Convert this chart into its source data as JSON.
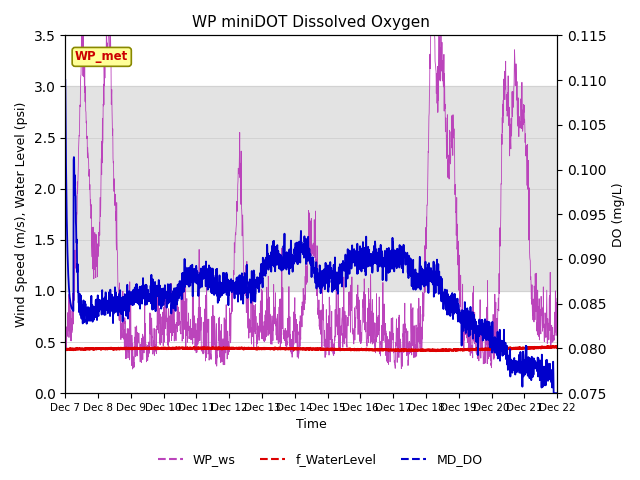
{
  "title": "WP miniDOT Dissolved Oxygen",
  "xlabel": "Time",
  "ylabel_left": "Wind Speed (m/s), Water Level (psi)",
  "ylabel_right": "DO (mg/L)",
  "ylim_left": [
    0.0,
    3.5
  ],
  "ylim_right": [
    0.075,
    0.115
  ],
  "yticks_left": [
    0.0,
    0.5,
    1.0,
    1.5,
    2.0,
    2.5,
    3.0,
    3.5
  ],
  "yticks_right": [
    0.075,
    0.08,
    0.085,
    0.09,
    0.095,
    0.1,
    0.105,
    0.11,
    0.115
  ],
  "x_tick_labels": [
    "Dec 7",
    "Dec 8",
    "Dec 9",
    "Dec 10",
    "Dec 11",
    "Dec 12",
    "Dec 13",
    "Dec 14",
    "Dec 15",
    "Dec 16",
    "Dec 17",
    "Dec 18",
    "Dec 19",
    "Dec 20",
    "Dec 21",
    "Dec 22"
  ],
  "wp_ws_color": "#BB44BB",
  "f_waterlevel_color": "#DD0000",
  "md_do_color": "#0000CC",
  "shaded_band_color": "#DCDCDC",
  "shaded_band_alpha": 0.8,
  "shaded_band_ylim": [
    1.0,
    3.0
  ],
  "annotation_box_text": "WP_met",
  "annotation_box_color": "#FFFF99",
  "annotation_box_edge_color": "#888800",
  "annotation_text_color": "#CC0000",
  "legend_labels": [
    "WP_ws",
    "f_WaterLevel",
    "MD_DO"
  ],
  "legend_colors": [
    "#BB44BB",
    "#DD0000",
    "#0000CC"
  ],
  "seed": 42
}
